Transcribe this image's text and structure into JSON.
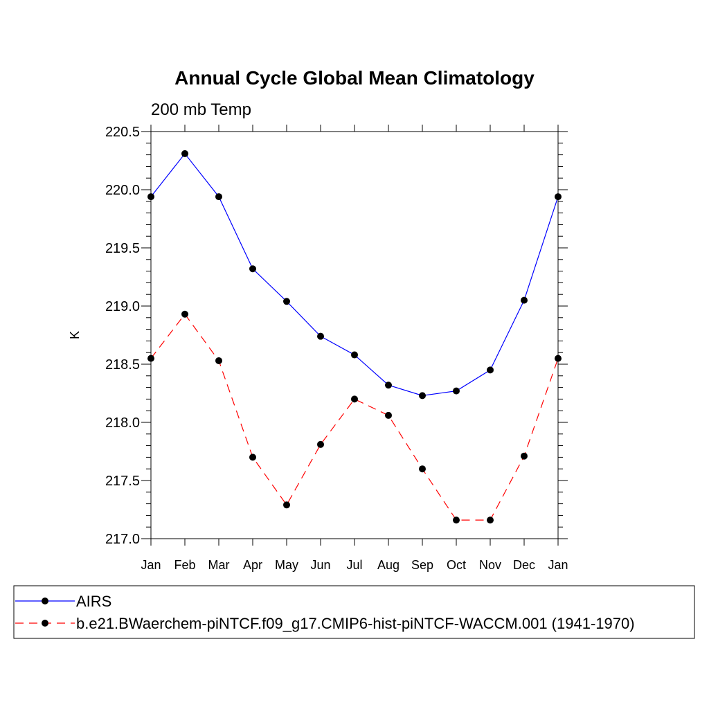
{
  "chart_data": {
    "type": "line",
    "title": "Annual Cycle Global Mean Climatology",
    "subtitle": "200 mb Temp",
    "xlabel": "",
    "ylabel": "K",
    "categories": [
      "Jan",
      "Feb",
      "Mar",
      "Apr",
      "May",
      "Jun",
      "Jul",
      "Aug",
      "Sep",
      "Oct",
      "Nov",
      "Dec",
      "Jan"
    ],
    "yticks": [
      "217.0",
      "217.5",
      "218.0",
      "218.5",
      "219.0",
      "219.5",
      "220.0",
      "220.5"
    ],
    "ylim": [
      217.0,
      220.5
    ],
    "grid": false,
    "legend_position": "bottom",
    "series": [
      {
        "name": "AIRS",
        "color": "#0000ff",
        "dash": "solid",
        "marker": "filled-circle",
        "values": [
          219.94,
          220.31,
          219.94,
          219.32,
          219.04,
          218.74,
          218.58,
          218.32,
          218.23,
          218.27,
          218.45,
          219.05,
          219.94
        ]
      },
      {
        "name": "b.e21.BWaerchem-piNTCF.f09_g17.CMIP6-hist-piNTCF-WACCM.001 (1941-1970)",
        "color": "#ff0000",
        "dash": "dashed",
        "marker": "filled-circle",
        "values": [
          218.55,
          218.93,
          218.53,
          217.7,
          217.29,
          217.81,
          218.2,
          218.06,
          217.6,
          217.16,
          217.16,
          217.71,
          218.55
        ]
      }
    ]
  }
}
